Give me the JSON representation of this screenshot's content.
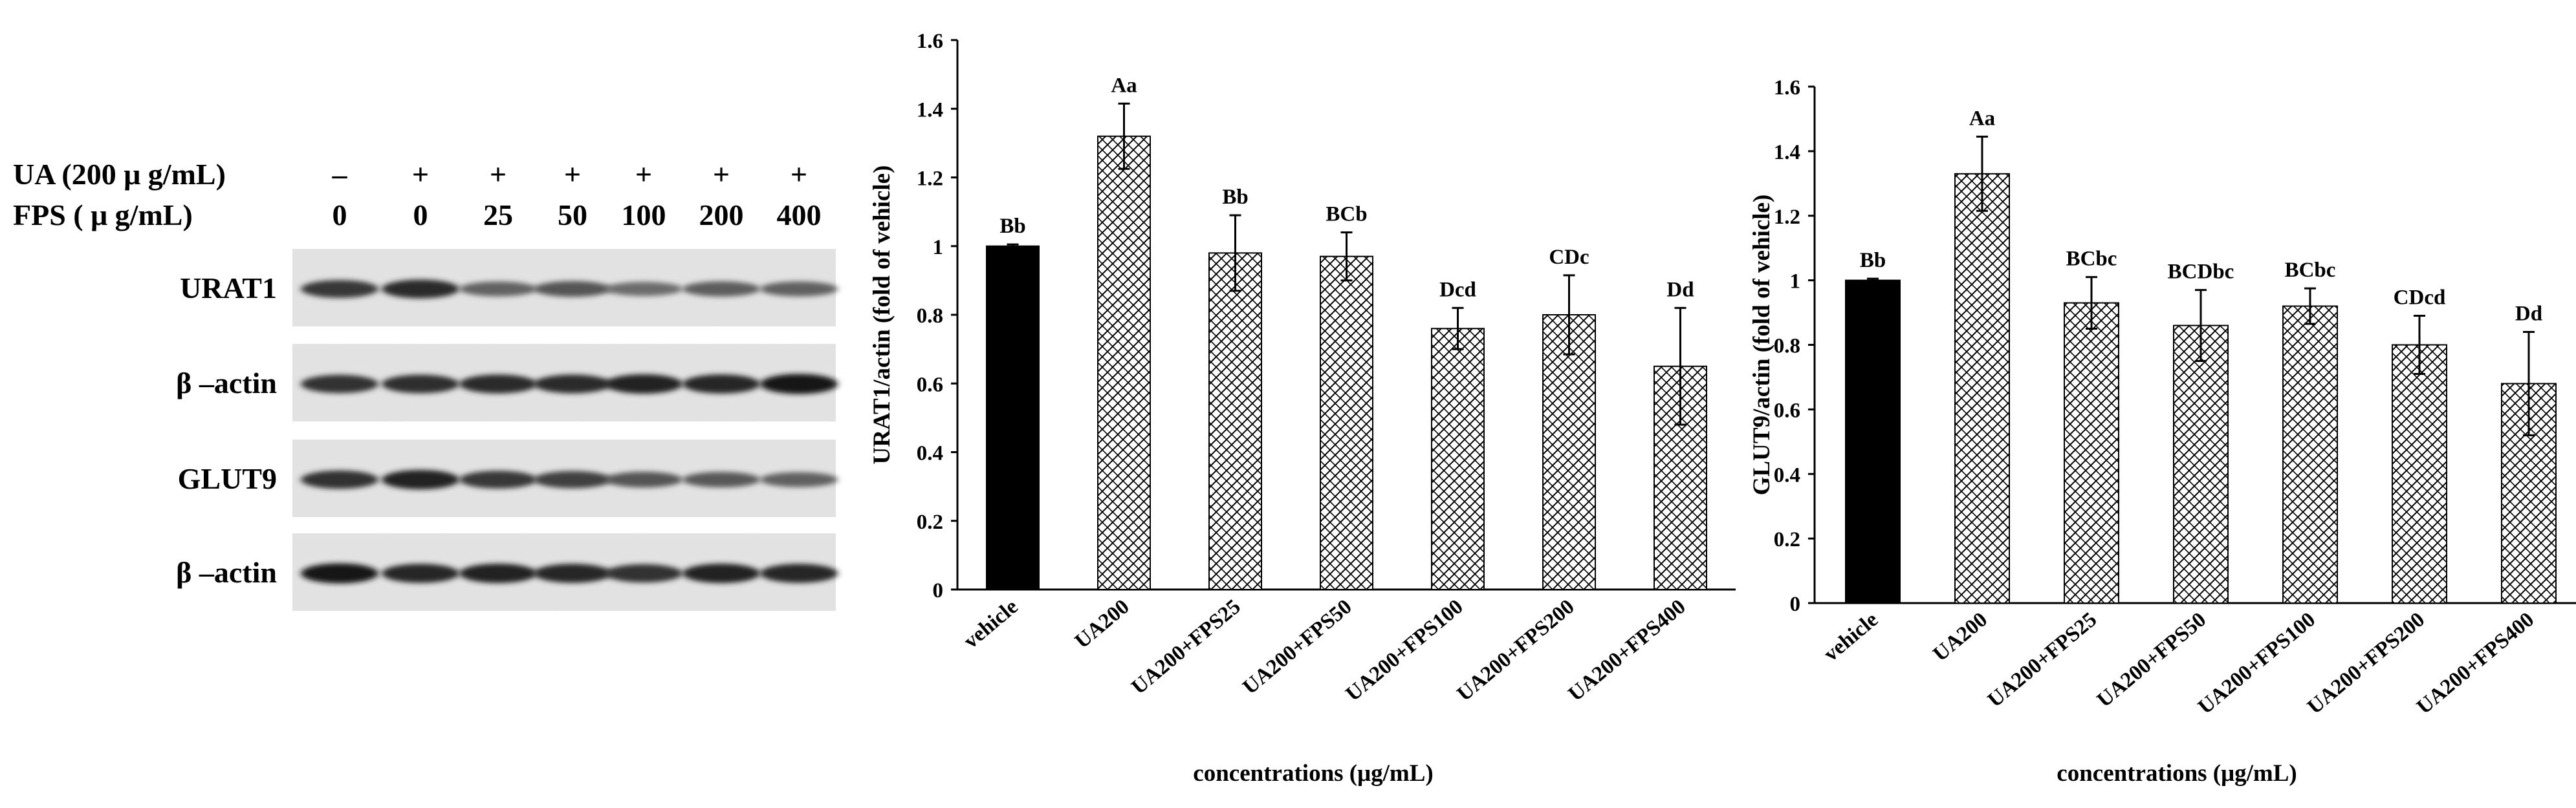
{
  "blot": {
    "conditions": [
      {
        "label": "UA (200 μ g/mL)",
        "values": [
          "–",
          "+",
          "+",
          "+",
          "+",
          "+",
          "+"
        ]
      },
      {
        "label": "FPS ( μ g/mL)",
        "values": [
          "0",
          "0",
          "25",
          "50",
          "100",
          "200",
          "400"
        ]
      }
    ],
    "panels": [
      {
        "label": "URAT1",
        "intensity": [
          0.78,
          0.85,
          0.55,
          0.62,
          0.5,
          0.58,
          0.56
        ]
      },
      {
        "label": "β –actin",
        "intensity": [
          0.82,
          0.84,
          0.86,
          0.85,
          0.9,
          0.88,
          0.95
        ]
      },
      {
        "label": "GLUT9",
        "intensity": [
          0.82,
          0.9,
          0.78,
          0.74,
          0.62,
          0.6,
          0.56
        ]
      },
      {
        "label": "β –actin",
        "intensity": [
          0.95,
          0.88,
          0.9,
          0.88,
          0.82,
          0.9,
          0.88
        ]
      }
    ]
  },
  "chart_data": [
    {
      "type": "bar",
      "title": "",
      "xlabel": "concentrations (μg/mL)",
      "ylabel": "URAT1/actin (fold of vehicle)",
      "ylim": [
        0,
        1.6
      ],
      "yticks": [
        "0",
        "0.2",
        "0.4",
        "0.6",
        "0.8",
        "1",
        "1.2",
        "1.4",
        "1.6"
      ],
      "categories": [
        "vehicle",
        "UA200",
        "UA200+FPS25",
        "UA200+FPS50",
        "UA200+FPS100",
        "UA200+FPS200",
        "UA200+FPS400"
      ],
      "values": [
        1.0,
        1.32,
        0.98,
        0.97,
        0.76,
        0.8,
        0.65
      ],
      "errors": [
        0.005,
        0.095,
        0.11,
        0.07,
        0.06,
        0.115,
        0.17
      ],
      "labels": [
        "Bb",
        "Aa",
        "Bb",
        "BCb",
        "Dcd",
        "CDc",
        "Dd"
      ],
      "fills": [
        "solid",
        "hatch",
        "hatch",
        "hatch",
        "hatch",
        "hatch",
        "hatch"
      ],
      "colors": {
        "solid": "#000000",
        "hatch": "#000000",
        "axis": "#000000"
      }
    },
    {
      "type": "bar",
      "title": "",
      "xlabel": "concentrations (μg/mL)",
      "ylabel": "GLUT9/actin (fold of vehicle)",
      "ylim": [
        0,
        1.6
      ],
      "yticks": [
        "0",
        "0.2",
        "0.4",
        "0.6",
        "0.8",
        "1",
        "1.2",
        "1.4",
        "1.6"
      ],
      "categories": [
        "vehicle",
        "UA200",
        "UA200+FPS25",
        "UA200+FPS50",
        "UA200+FPS100",
        "UA200+FPS200",
        "UA200+FPS400"
      ],
      "values": [
        1.0,
        1.33,
        0.93,
        0.86,
        0.92,
        0.8,
        0.68
      ],
      "errors": [
        0.005,
        0.115,
        0.08,
        0.11,
        0.055,
        0.09,
        0.16
      ],
      "labels": [
        "Bb",
        "Aa",
        "BCbc",
        "BCDbc",
        "BCbc",
        "CDcd",
        "Dd"
      ],
      "fills": [
        "solid",
        "hatch",
        "hatch",
        "hatch",
        "hatch",
        "hatch",
        "hatch"
      ],
      "colors": {
        "solid": "#000000",
        "hatch": "#000000",
        "axis": "#000000"
      }
    }
  ]
}
